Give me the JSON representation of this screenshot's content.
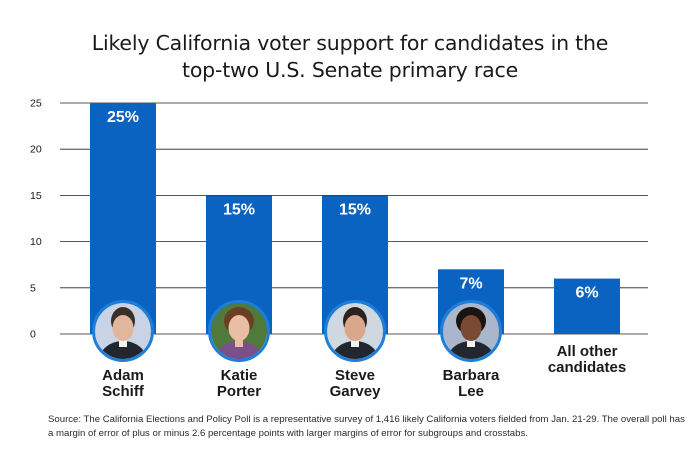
{
  "title": {
    "line1": "Likely California voter support for candidates in the",
    "line2": "top-two U.S. Senate primary race"
  },
  "source": "Source: The California Elections and Policy Poll is a representative survey of 1,416 likely California voters fielded from Jan. 21-29. The overall poll has a margin of error of plus or minus 2.6 percentage points with larger margins of error for subgroups and crosstabs.",
  "colors": {
    "bar": "#0a63c0",
    "grid": "#222222",
    "text": "#1a1a1a",
    "label": "#ffffff"
  },
  "chart_data": {
    "type": "bar",
    "title": "Likely California voter support for candidates in the top-two U.S. Senate primary race",
    "xlabel": "",
    "ylabel": "",
    "ylim": [
      0,
      25
    ],
    "yticks": [
      "0",
      "5",
      "10",
      "15",
      "20",
      "25"
    ],
    "grid": true,
    "categories": [
      {
        "line1": "Adam",
        "line2": "Schiff"
      },
      {
        "line1": "Katie",
        "line2": "Porter"
      },
      {
        "line1": "Steve",
        "line2": "Garvey"
      },
      {
        "line1": "Barbara",
        "line2": "Lee"
      },
      {
        "line1": "All other",
        "line2": "candidates"
      }
    ],
    "values": [
      25,
      15,
      15,
      7,
      6
    ],
    "data_labels": [
      "25%",
      "15%",
      "15%",
      "7%",
      "6%"
    ],
    "portraits": [
      "portrait-adam-schiff",
      "portrait-katie-porter",
      "portrait-steve-garvey",
      "portrait-barbara-lee",
      null
    ]
  }
}
